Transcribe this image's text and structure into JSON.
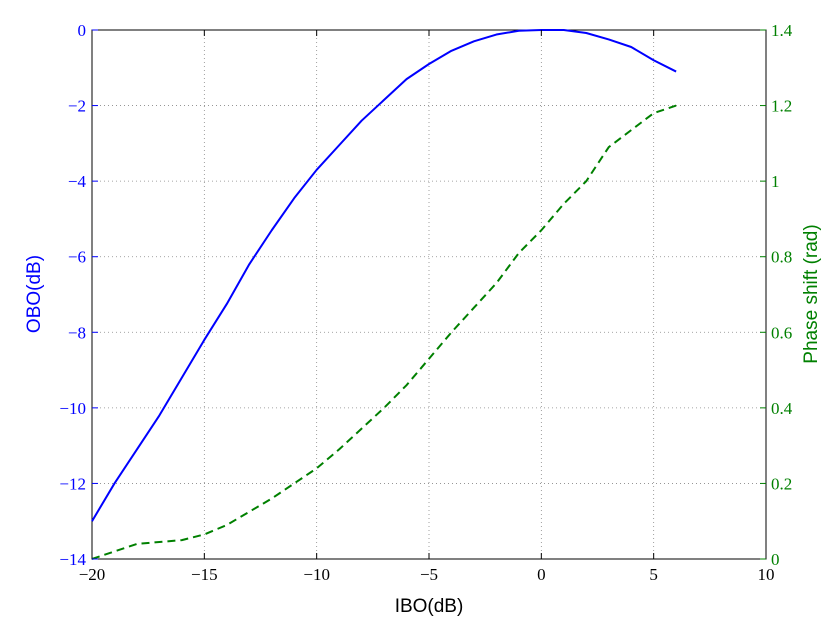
{
  "chart_data": {
    "type": "line",
    "xlabel": "IBO(dB)",
    "ylabel_left": "OBO(dB)",
    "ylabel_right": "Phase shift (rad)",
    "xlim": [
      -20,
      10
    ],
    "ylim_left": [
      -14,
      0
    ],
    "ylim_right": [
      0,
      1.4
    ],
    "x_ticks": [
      "-20",
      "-15",
      "-10",
      "-5",
      "0",
      "5",
      "10"
    ],
    "y_left_ticks": [
      "-14",
      "-12",
      "-10",
      "-8",
      "-6",
      "-4",
      "-2",
      "0"
    ],
    "y_right_ticks": [
      "0",
      "0.2",
      "0.4",
      "0.6",
      "0.8",
      "1",
      "1.2",
      "1.4"
    ],
    "grid": true,
    "series": [
      {
        "axis": "left",
        "style": "solid",
        "color": "#0000ff",
        "x": [
          -20,
          -19,
          -18,
          -17,
          -16,
          -15,
          -14,
          -13,
          -12,
          -11,
          -10,
          -9,
          -8,
          -7,
          -6,
          -5,
          -4,
          -3,
          -2,
          -1,
          0,
          1,
          2,
          3,
          4,
          5,
          6
        ],
        "y": [
          -13.0,
          -12.0,
          -11.1,
          -10.2,
          -9.2,
          -8.2,
          -7.25,
          -6.2,
          -5.3,
          -4.45,
          -3.7,
          -3.05,
          -2.4,
          -1.85,
          -1.3,
          -0.9,
          -0.55,
          -0.3,
          -0.12,
          -0.02,
          0.0,
          0.0,
          -0.08,
          -0.25,
          -0.45,
          -0.8,
          -1.1
        ]
      },
      {
        "axis": "right",
        "style": "dashed",
        "color": "#008000",
        "x": [
          -20,
          -19,
          -18,
          -17,
          -16,
          -15,
          -14,
          -13,
          -12,
          -11,
          -10,
          -9,
          -8,
          -7,
          -6,
          -5,
          -4,
          -3,
          -2,
          -1,
          0,
          1,
          2,
          3,
          4,
          5,
          6
        ],
        "y": [
          0.0,
          0.02,
          0.04,
          0.045,
          0.05,
          0.065,
          0.09,
          0.125,
          0.16,
          0.2,
          0.24,
          0.29,
          0.345,
          0.4,
          0.46,
          0.53,
          0.6,
          0.665,
          0.73,
          0.81,
          0.87,
          0.94,
          1.0,
          1.09,
          1.135,
          1.18,
          1.2
        ]
      }
    ]
  }
}
